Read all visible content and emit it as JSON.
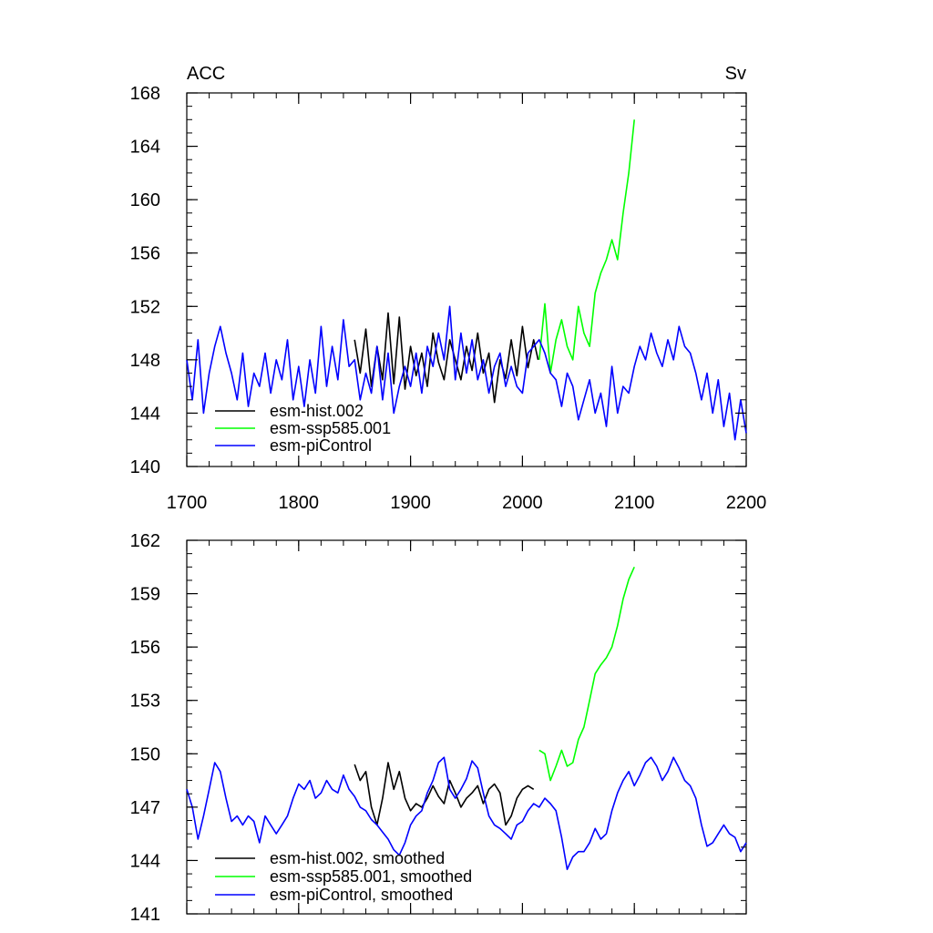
{
  "chart_data": [
    {
      "type": "line",
      "title_left": "ACC",
      "title_right": "Sv",
      "xlim": [
        1700,
        2200
      ],
      "ylim": [
        140,
        168
      ],
      "x_ticks": [
        1700,
        1800,
        1900,
        2000,
        2100,
        2200
      ],
      "y_ticks": [
        140,
        144,
        148,
        152,
        156,
        160,
        164,
        168
      ],
      "x_tick_labels": [
        "1700",
        "1800",
        "1900",
        "2000",
        "2100",
        "2200"
      ],
      "y_tick_labels": [
        "140",
        "144",
        "148",
        "152",
        "156",
        "160",
        "164",
        "168"
      ],
      "legend_position": "bottom-left",
      "series": [
        {
          "name": "esm-hist.002",
          "color": "#000000",
          "x": [
            1850,
            1855,
            1860,
            1865,
            1870,
            1875,
            1880,
            1885,
            1890,
            1895,
            1900,
            1905,
            1910,
            1915,
            1920,
            1925,
            1930,
            1935,
            1940,
            1945,
            1950,
            1955,
            1960,
            1965,
            1970,
            1975,
            1980,
            1985,
            1990,
            1995,
            2000,
            2005,
            2010,
            2014
          ],
          "y": [
            149.5,
            147.0,
            150.3,
            146.0,
            149.0,
            146.5,
            151.5,
            146.2,
            151.2,
            145.8,
            149.0,
            146.8,
            148.5,
            146.0,
            150.0,
            147.8,
            146.5,
            149.5,
            148.0,
            146.5,
            149.0,
            147.2,
            150.0,
            147.0,
            148.5,
            144.8,
            148.0,
            146.6,
            149.5,
            146.8,
            150.5,
            147.4,
            149.5,
            148.0
          ]
        },
        {
          "name": "esm-ssp585.001",
          "color": "#00ff00",
          "x": [
            2015,
            2020,
            2025,
            2030,
            2035,
            2040,
            2045,
            2050,
            2055,
            2060,
            2065,
            2070,
            2075,
            2080,
            2085,
            2090,
            2095,
            2100
          ],
          "y": [
            148.0,
            152.2,
            147.0,
            149.5,
            151.0,
            149.0,
            148.0,
            152.0,
            150.0,
            149.0,
            153.0,
            154.5,
            155.5,
            157.0,
            155.5,
            159.0,
            162.0,
            166.0
          ]
        },
        {
          "name": "esm-piControl",
          "color": "#0000ff",
          "x": [
            1700,
            1705,
            1710,
            1715,
            1720,
            1725,
            1730,
            1735,
            1740,
            1745,
            1750,
            1755,
            1760,
            1765,
            1770,
            1775,
            1780,
            1785,
            1790,
            1795,
            1800,
            1805,
            1810,
            1815,
            1820,
            1825,
            1830,
            1835,
            1840,
            1845,
            1850,
            1855,
            1860,
            1865,
            1870,
            1875,
            1880,
            1885,
            1890,
            1895,
            1900,
            1905,
            1910,
            1915,
            1920,
            1925,
            1930,
            1935,
            1940,
            1945,
            1950,
            1955,
            1960,
            1965,
            1970,
            1975,
            1980,
            1985,
            1990,
            1995,
            2000,
            2005,
            2010,
            2015,
            2020,
            2025,
            2030,
            2035,
            2040,
            2045,
            2050,
            2055,
            2060,
            2065,
            2070,
            2075,
            2080,
            2085,
            2090,
            2095,
            2100,
            2105,
            2110,
            2115,
            2120,
            2125,
            2130,
            2135,
            2140,
            2145,
            2150,
            2155,
            2160,
            2165,
            2170,
            2175,
            2180,
            2185,
            2190,
            2195,
            2200
          ],
          "y": [
            148.0,
            145.0,
            149.5,
            144.0,
            147.0,
            149.0,
            150.5,
            148.5,
            147.0,
            145.0,
            148.5,
            144.5,
            147.0,
            146.0,
            148.5,
            145.5,
            148.0,
            146.5,
            149.5,
            145.0,
            147.5,
            144.5,
            148.0,
            145.5,
            150.5,
            146.0,
            149.0,
            146.5,
            151.0,
            147.5,
            148.0,
            145.0,
            147.0,
            145.5,
            149.0,
            145.0,
            148.5,
            144.0,
            146.0,
            147.5,
            146.0,
            148.5,
            145.5,
            149.0,
            147.5,
            150.0,
            148.0,
            152.0,
            146.5,
            150.0,
            147.0,
            149.5,
            146.5,
            148.0,
            145.5,
            147.5,
            148.5,
            146.0,
            147.5,
            146.0,
            145.5,
            148.5,
            149.0,
            149.5,
            148.5,
            147.0,
            146.5,
            144.5,
            147.0,
            146.0,
            143.5,
            145.0,
            146.5,
            144.0,
            145.5,
            143.0,
            147.5,
            144.0,
            146.0,
            145.5,
            147.5,
            149.0,
            148.0,
            150.0,
            148.5,
            147.5,
            149.5,
            148.0,
            150.5,
            149.0,
            148.5,
            147.0,
            145.0,
            147.0,
            144.0,
            146.5,
            143.0,
            145.5,
            142.0,
            145.0,
            142.5
          ]
        }
      ]
    },
    {
      "type": "line",
      "xlim": [
        1700,
        2200
      ],
      "ylim": [
        141,
        162
      ],
      "x_ticks": [
        1700,
        1800,
        1900,
        2000,
        2100,
        2200
      ],
      "y_ticks": [
        141,
        144,
        147,
        150,
        153,
        156,
        159,
        162
      ],
      "y_tick_labels": [
        "141",
        "144",
        "147",
        "150",
        "153",
        "156",
        "159",
        "162"
      ],
      "legend_position": "bottom-left",
      "series": [
        {
          "name": "esm-hist.002, smoothed",
          "color": "#000000",
          "x": [
            1850,
            1855,
            1860,
            1865,
            1870,
            1875,
            1880,
            1885,
            1890,
            1895,
            1900,
            1905,
            1910,
            1915,
            1920,
            1925,
            1930,
            1935,
            1940,
            1945,
            1950,
            1955,
            1960,
            1965,
            1970,
            1975,
            1980,
            1985,
            1990,
            1995,
            2000,
            2005,
            2010
          ],
          "y": [
            149.4,
            148.5,
            149.0,
            147.0,
            146.0,
            147.5,
            149.5,
            148.0,
            149.0,
            147.5,
            146.8,
            147.2,
            147.0,
            147.5,
            148.2,
            147.6,
            147.2,
            148.5,
            147.8,
            147.0,
            147.5,
            147.8,
            148.2,
            147.2,
            148.0,
            148.3,
            147.8,
            146.0,
            146.5,
            147.5,
            148.0,
            148.2,
            148.0
          ]
        },
        {
          "name": "esm-ssp585.001, smoothed",
          "color": "#00ff00",
          "x": [
            2015,
            2020,
            2025,
            2030,
            2035,
            2040,
            2045,
            2050,
            2055,
            2060,
            2065,
            2070,
            2075,
            2080,
            2085,
            2090,
            2095,
            2100
          ],
          "y": [
            150.2,
            150.0,
            148.5,
            149.3,
            150.2,
            149.3,
            149.5,
            150.8,
            151.5,
            153.0,
            154.5,
            155.0,
            155.4,
            156.0,
            157.2,
            158.7,
            159.8,
            160.5
          ]
        },
        {
          "name": "esm-piControl, smoothed",
          "color": "#0000ff",
          "x": [
            1700,
            1705,
            1710,
            1715,
            1720,
            1725,
            1730,
            1735,
            1740,
            1745,
            1750,
            1755,
            1760,
            1765,
            1770,
            1775,
            1780,
            1785,
            1790,
            1795,
            1800,
            1805,
            1810,
            1815,
            1820,
            1825,
            1830,
            1835,
            1840,
            1845,
            1850,
            1855,
            1860,
            1865,
            1870,
            1875,
            1880,
            1885,
            1890,
            1895,
            1900,
            1905,
            1910,
            1915,
            1920,
            1925,
            1930,
            1935,
            1940,
            1945,
            1950,
            1955,
            1960,
            1965,
            1970,
            1975,
            1980,
            1985,
            1990,
            1995,
            2000,
            2005,
            2010,
            2015,
            2020,
            2025,
            2030,
            2035,
            2040,
            2045,
            2050,
            2055,
            2060,
            2065,
            2070,
            2075,
            2080,
            2085,
            2090,
            2095,
            2100,
            2105,
            2110,
            2115,
            2120,
            2125,
            2130,
            2135,
            2140,
            2145,
            2150,
            2155,
            2160,
            2165,
            2170,
            2175,
            2180,
            2185,
            2190,
            2195,
            2200
          ],
          "y": [
            148.0,
            147.0,
            145.2,
            146.5,
            148.0,
            149.5,
            149.0,
            147.5,
            146.2,
            146.5,
            146.0,
            146.5,
            146.2,
            145.0,
            146.5,
            146.0,
            145.5,
            146.0,
            146.5,
            147.5,
            148.3,
            148.0,
            148.5,
            147.5,
            147.8,
            148.5,
            148.0,
            147.8,
            148.8,
            148.0,
            147.6,
            147.0,
            146.8,
            146.3,
            146.0,
            145.6,
            145.2,
            144.6,
            144.3,
            145.0,
            146.0,
            146.5,
            146.8,
            147.8,
            148.5,
            149.5,
            149.8,
            148.0,
            147.5,
            148.0,
            148.6,
            149.6,
            149.2,
            147.8,
            146.5,
            146.0,
            145.8,
            145.5,
            145.2,
            146.0,
            146.2,
            146.8,
            147.2,
            147.0,
            147.5,
            147.2,
            146.8,
            145.3,
            143.5,
            144.2,
            144.5,
            144.5,
            145.0,
            145.8,
            145.2,
            145.5,
            146.8,
            147.8,
            148.5,
            149.0,
            148.2,
            148.8,
            149.5,
            149.8,
            149.3,
            148.5,
            149.0,
            149.8,
            149.2,
            148.5,
            148.2,
            147.5,
            146.0,
            144.8,
            145.0,
            145.5,
            146.0,
            145.5,
            145.3,
            144.5,
            145.0
          ]
        }
      ]
    }
  ]
}
